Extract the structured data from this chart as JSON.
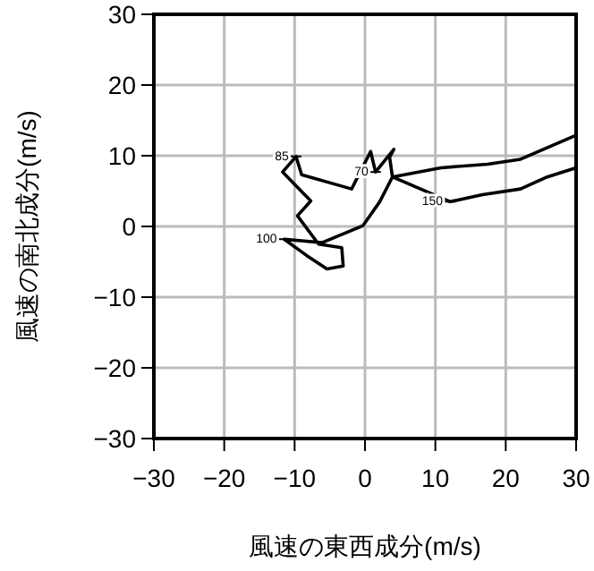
{
  "chart_data": {
    "type": "line",
    "xlabel": "風速の東西成分(m/s)",
    "ylabel": "風速の南北成分(m/s)",
    "x": [
      30,
      22.1,
      17.4,
      10.8,
      3.9,
      3.5,
      4.1,
      1.5,
      0.8,
      -1.9,
      -9.0,
      -9.8,
      -11.7,
      -7.7,
      -9.6,
      -6.6,
      -3.3,
      -3.1,
      -5.4,
      -8.3,
      -11.5,
      -6.1,
      -0.3,
      2.1,
      3.9,
      12.1,
      16.7,
      22.1,
      25.9,
      30
    ],
    "values": [
      12.9,
      9.5,
      8.8,
      8.3,
      7.0,
      9.8,
      10.9,
      7.7,
      10.6,
      5.3,
      7.3,
      9.9,
      7.7,
      3.6,
      1.5,
      -2.5,
      -3.0,
      -5.6,
      -6.0,
      -4.1,
      -1.8,
      -2.3,
      0.1,
      3.5,
      7.0,
      3.5,
      4.5,
      5.3,
      7.0,
      8.3
    ],
    "color": "#000000",
    "xlim": [
      -30,
      30
    ],
    "ylim": [
      -30,
      30
    ],
    "xticks": [
      -30,
      -20,
      -10,
      0,
      10,
      20,
      30
    ],
    "yticks": [
      -30,
      -20,
      -10,
      0,
      10,
      20,
      30
    ],
    "grid": true,
    "marker": "none",
    "line_style": "solid",
    "annotations": [
      {
        "text": "85",
        "x": -9.8,
        "y": 9.9
      },
      {
        "text": "70",
        "x": 1.5,
        "y": 7.7
      },
      {
        "text": "150",
        "x": 12.1,
        "y": 3.5
      },
      {
        "text": "100",
        "x": -11.5,
        "y": -1.8
      }
    ]
  }
}
